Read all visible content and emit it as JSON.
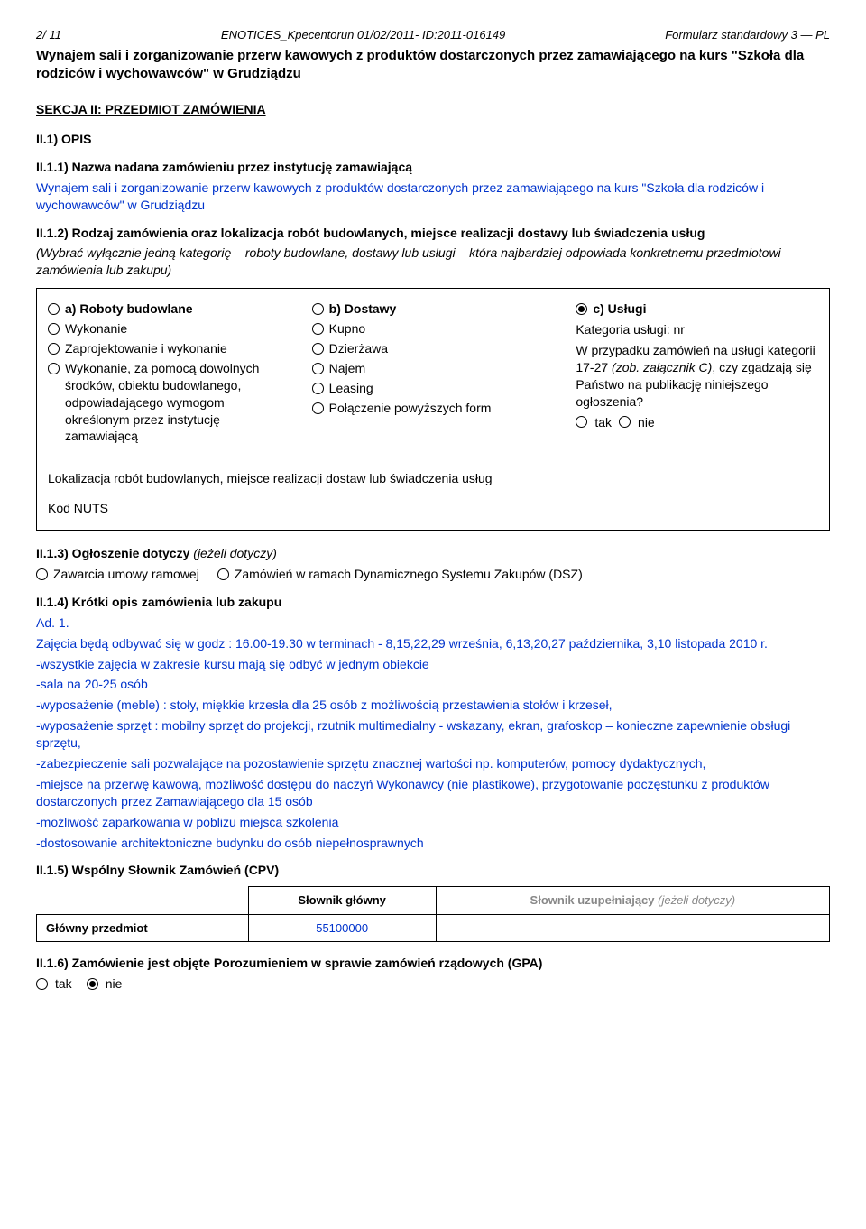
{
  "header": {
    "left": "2/ 11",
    "center": "ENOTICES_Kpecentorun 01/02/2011- ID:2011-016149",
    "right": "Formularz standardowy 3 — PL"
  },
  "title": "Wynajem sali i zorganizowanie przerw kawowych z produktów dostarczonych przez zamawiającego na kurs \"Szkoła dla rodziców i wychowawców\" w Grudziądzu",
  "sekcja2": {
    "heading": "SEKCJA II: PRZEDMIOT ZAMÓWIENIA",
    "opis": "II.1) OPIS",
    "ii11_label": "II.1.1) Nazwa nadana zamówieniu przez instytucję zamawiającą",
    "ii11_body": "Wynajem sali i zorganizowanie przerw kawowych z produktów dostarczonych przez zamawiającego na kurs \"Szkoła dla rodziców i wychowawców\" w Grudziądzu",
    "ii12_label": "II.1.2) Rodzaj zamówienia oraz lokalizacja robót budowlanych, miejsce realizacji dostawy lub świadczenia usług",
    "ii12_note": "(Wybrać wyłącznie jedną kategorię – roboty budowlane, dostawy lub usługi – która najbardziej odpowiada konkretnemu przedmiotowi zamówienia lub zakupu)",
    "col_a": {
      "head": "a) Roboty budowlane",
      "r1": "Wykonanie",
      "r2": "Zaprojektowanie i wykonanie",
      "r3": "Wykonanie, za pomocą dowolnych środków, obiektu budowlanego, odpowiadającego wymogom określonym przez instytucję zamawiającą"
    },
    "col_b": {
      "head": "b) Dostawy",
      "r1": "Kupno",
      "r2": "Dzierżawa",
      "r3": "Najem",
      "r4": "Leasing",
      "r5": "Połączenie powyższych form"
    },
    "col_c": {
      "head": "c) Usługi",
      "cat": "Kategoria usługi: nr",
      "note": "W przypadku zamówień na usługi kategorii 17-27 (zob. załącznik C), czy zgadzają się Państwo na publikację niniejszego ogłoszenia?",
      "tak": "tak",
      "nie": "nie"
    },
    "loc_label": "Lokalizacja robót budowlanych, miejsce realizacji dostaw lub świadczenia usług",
    "kod": "Kod NUTS",
    "ii13_label": "II.1.3) Ogłoszenie dotyczy",
    "ii13_suffix": "(jeżeli dotyczy)",
    "ii13_opt1": "Zawarcia umowy ramowej",
    "ii13_opt2": "Zamówień w ramach Dynamicznego Systemu Zakupów (DSZ)",
    "ii14_label": "II.1.4) Krótki opis zamówienia lub zakupu",
    "ii14_body": {
      "p1": "Ad. 1.",
      "p2": "Zajęcia będą odbywać się w godz : 16.00-19.30 w terminach - 8,15,22,29 września, 6,13,20,27 października, 3,10 listopada 2010 r.",
      "p3": "-wszystkie zajęcia w zakresie kursu mają się odbyć w jednym obiekcie",
      "p4": "-sala na 20-25 osób",
      "p5": "-wyposażenie (meble) : stoły, miękkie krzesła dla 25 osób z możliwością przestawienia stołów i krzeseł,",
      "p6": "-wyposażenie sprzęt : mobilny sprzęt do projekcji, rzutnik multimedialny - wskazany, ekran, grafoskop – konieczne zapewnienie obsługi sprzętu,",
      "p7": "-zabezpieczenie sali pozwalające na pozostawienie sprzętu znacznej wartości np. komputerów, pomocy dydaktycznych,",
      "p8": "-miejsce na przerwę kawową, możliwość dostępu do naczyń Wykonawcy (nie plastikowe), przygotowanie poczęstunku z produktów dostarczonych przez Zamawiającego dla 15 osób",
      "p9": "-możliwość zaparkowania w pobliżu miejsca szkolenia",
      "p10": "-dostosowanie architektoniczne budynku do osób niepełnosprawnych"
    },
    "ii15_label": "II.1.5) Wspólny Słownik Zamówień (CPV)",
    "cpv": {
      "h1": "Słownik główny",
      "h2": "Słownik uzupełniający",
      "h2_suffix": "(jeżeli dotyczy)",
      "rowlabel": "Główny przedmiot",
      "value": "55100000"
    },
    "ii16_label": "II.1.6) Zamówienie jest objęte Porozumieniem w sprawie zamówień rządowych (GPA)",
    "ii16_tak": "tak",
    "ii16_nie": "nie"
  }
}
